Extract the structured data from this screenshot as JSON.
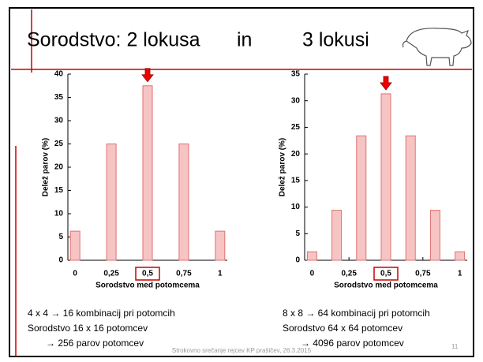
{
  "title": {
    "left": "Sorodstvo: 2 lokusa",
    "middle": "in",
    "right": "3 lokusi"
  },
  "chart_data": [
    {
      "type": "bar",
      "xlabel": "Sorodstvo med potomcema",
      "ylabel": "Delež parov (%)",
      "color": "#f7c4c4",
      "x": [
        0,
        0.25,
        0.5,
        0.75,
        1
      ],
      "values": [
        6.25,
        25,
        37.5,
        25,
        6.25
      ],
      "xlim": [
        -0.05,
        1.05
      ],
      "ylim": [
        0,
        40
      ],
      "xticks": [
        0,
        {
          "value": 0.25,
          "label": "0,25"
        },
        {
          "value": 0.5,
          "label": "0,5"
        },
        {
          "value": 0.75,
          "label": "0,75"
        },
        1
      ],
      "yticks": [
        0,
        5,
        10,
        15,
        20,
        25,
        30,
        35,
        40
      ]
    },
    {
      "type": "bar",
      "xlabel": "Sorodstvo med potomcema",
      "ylabel": "Delež parov (%)",
      "color": "#f7c4c4",
      "x": [
        0,
        0.1667,
        0.3333,
        0.5,
        0.6667,
        0.8333,
        1
      ],
      "values": [
        1.6,
        9.4,
        23.4,
        31.3,
        23.4,
        9.4,
        1.6
      ],
      "xlim": [
        -0.05,
        1.05
      ],
      "ylim": [
        0,
        35
      ],
      "xticks": [
        0,
        {
          "value": 0.25,
          "label": "0,25"
        },
        {
          "value": 0.5,
          "label": "0,5"
        },
        {
          "value": 0.75,
          "label": "0,75"
        },
        1
      ],
      "yticks": [
        0,
        5,
        10,
        15,
        20,
        25,
        30,
        35
      ]
    }
  ],
  "captions": [
    [
      "4 x 4  → 16 kombinacij pri potomcih",
      "Sorodstvo 16 x 16 potomcev",
      "→ 256 parov potomcev"
    ],
    [
      "8 x 8  → 64 kombinacij pri potomcih",
      "Sorodstvo 64 x 64 potomcev",
      "→ 4096 parov potomcev"
    ]
  ],
  "footer": {
    "text": "Strokovno srečanje rejcev KP prašičev, 26.3.2015",
    "page": "11"
  }
}
